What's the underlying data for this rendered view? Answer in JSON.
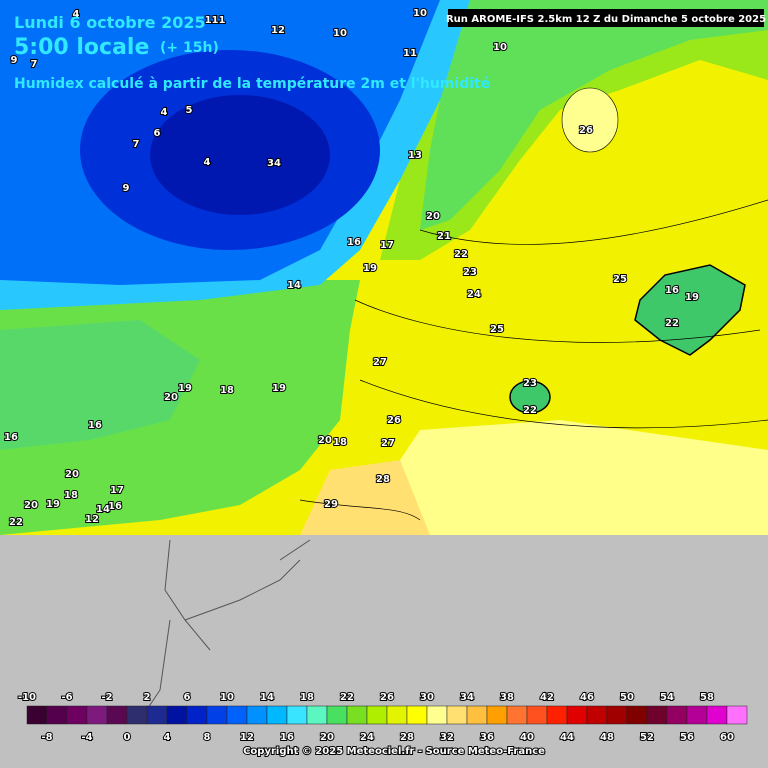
{
  "header": {
    "date": "Lundi 6 octobre 2025",
    "time": "5:00 locale",
    "lead": "(+ 15h)",
    "subtitle": "Humidex calculé à partir de la température 2m et l'humidité",
    "run": "Run AROME-IFS 2.5km 12 Z du Dimanche 5 octobre 2025"
  },
  "map_labels": [
    4,
    111,
    12,
    10,
    10,
    11,
    10,
    9,
    7,
    4,
    5,
    6,
    7,
    4,
    34,
    9,
    13,
    20,
    21,
    22,
    23,
    24,
    25,
    16,
    17,
    19,
    14,
    26,
    25,
    16,
    19,
    22,
    27,
    23,
    22,
    19,
    20,
    18,
    19,
    16,
    16,
    26,
    20,
    18,
    27,
    28,
    20,
    18,
    17,
    19,
    20,
    16,
    14,
    12,
    22,
    29
  ],
  "legend": {
    "colors": [
      "#3a0032",
      "#55004c",
      "#6e0062",
      "#7e1a7e",
      "#5a0852",
      "#2e2e6e",
      "#1c2a92",
      "#0012a2",
      "#0022c8",
      "#0040e6",
      "#0062fa",
      "#0090ff",
      "#00b8ff",
      "#38e4ff",
      "#5cf6c0",
      "#48e060",
      "#78e020",
      "#b0ee00",
      "#e2f400",
      "#ffff00",
      "#ffff90",
      "#ffe070",
      "#ffc040",
      "#ffa000",
      "#ff7430",
      "#ff5020",
      "#ff2000",
      "#e00000",
      "#c00000",
      "#a00000",
      "#800000",
      "#70002c",
      "#940062",
      "#b40096",
      "#e000d0",
      "#ff70ff"
    ],
    "top_labels": [
      -10,
      -6,
      -2,
      2,
      6,
      10,
      14,
      18,
      22,
      26,
      30,
      34,
      38,
      42,
      46,
      50,
      54,
      58
    ],
    "bottom_labels": [
      -8,
      -4,
      0,
      4,
      8,
      12,
      16,
      20,
      24,
      28,
      32,
      36,
      40,
      44,
      48,
      52,
      56,
      60
    ]
  },
  "copyright": "Copyright © 2025 Meteociel.fr - Source Meteo-France"
}
